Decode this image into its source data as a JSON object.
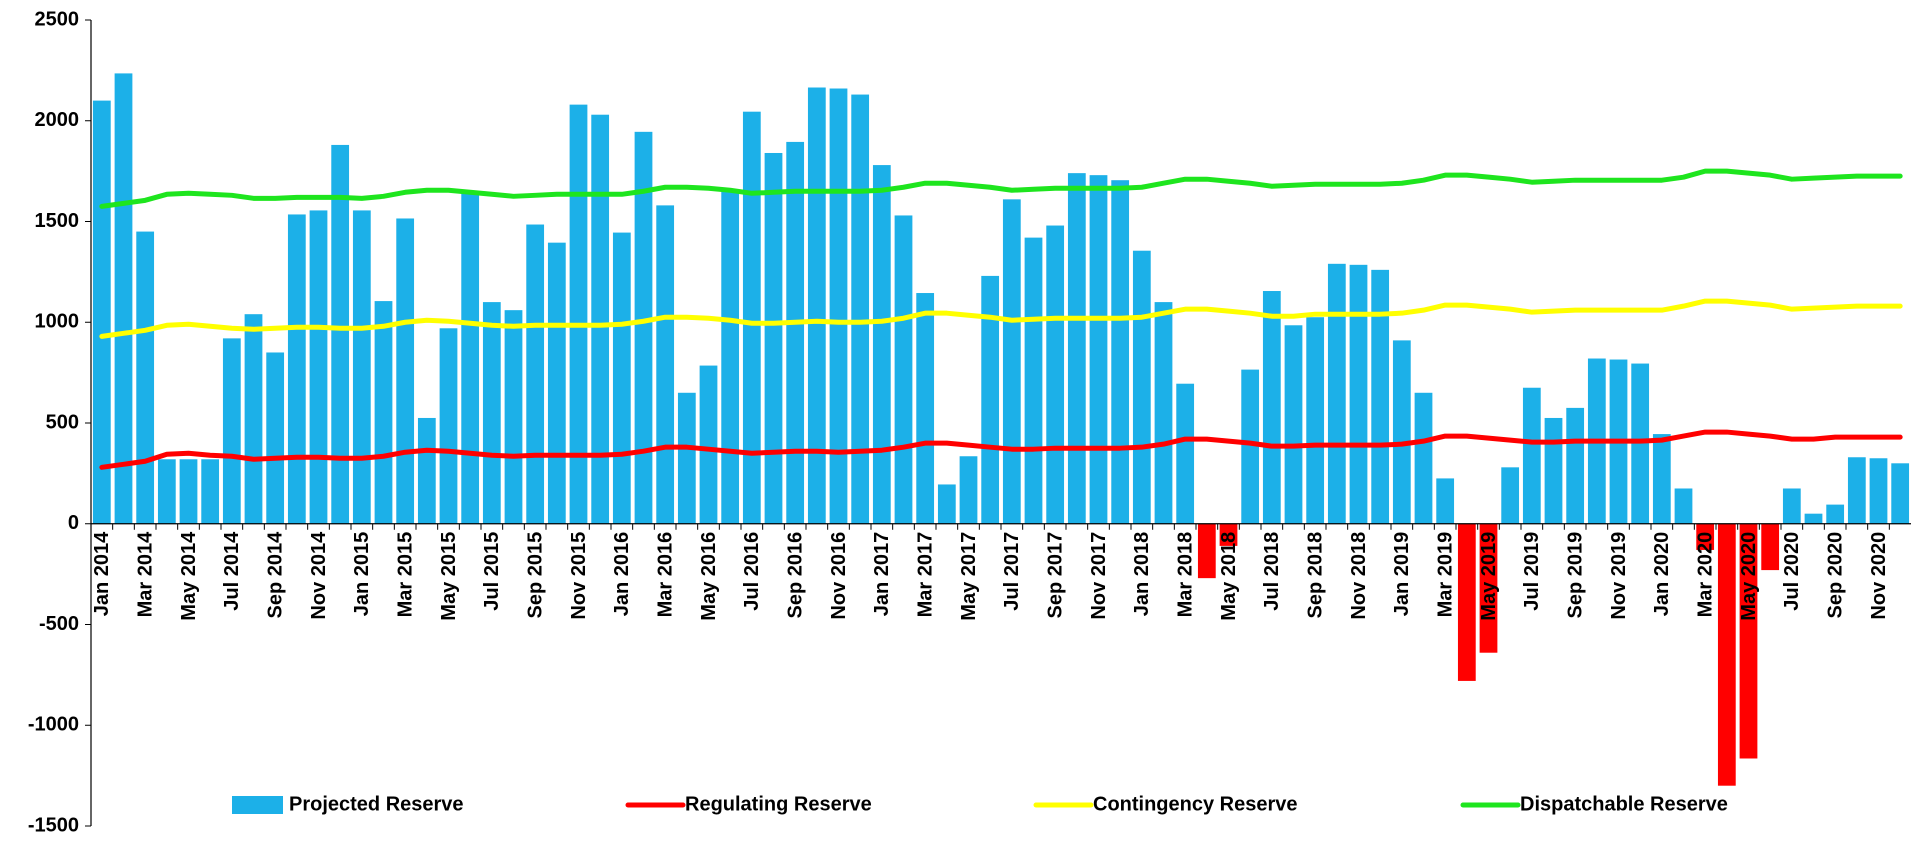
{
  "chart_data": {
    "type": "bar-line",
    "categories": [
      "Jan 2014",
      null,
      "Mar 2014",
      null,
      "May 2014",
      null,
      "Jul 2014",
      null,
      "Sep 2014",
      null,
      "Nov 2014",
      null,
      "Jan 2015",
      null,
      "Mar 2015",
      null,
      "May 2015",
      null,
      "Jul 2015",
      null,
      "Sep 2015",
      null,
      "Nov 2015",
      null,
      "Jan 2016",
      null,
      "Mar 2016",
      null,
      "May 2016",
      null,
      "Jul 2016",
      null,
      "Sep 2016",
      null,
      "Nov 2016",
      null,
      "Jan 2017",
      null,
      "Mar 2017",
      null,
      "May 2017",
      null,
      "Jul 2017",
      null,
      "Sep 2017",
      null,
      "Nov 2017",
      null,
      "Jan 2018",
      null,
      "Mar 2018",
      null,
      "May 2018",
      null,
      "Jul 2018",
      null,
      "Sep 2018",
      null,
      "Nov 2018",
      null,
      "Jan 2019",
      null,
      "Mar 2019",
      null,
      "May 2019",
      null,
      "Jul 2019",
      null,
      "Sep 2019",
      null,
      "Nov 2019",
      null,
      "Jan 2020",
      null,
      "Mar 2020",
      null,
      "May 2020",
      null,
      "Jul 2020",
      null,
      "Sep 2020",
      null,
      "Nov 2020",
      null
    ],
    "series": [
      {
        "name": "Projected Reserve",
        "kind": "bar",
        "color": "#1cb0e8",
        "negative_color": "#ff0000",
        "values": [
          2100,
          2235,
          1450,
          320,
          320,
          320,
          920,
          1040,
          850,
          1535,
          1555,
          1880,
          1555,
          1105,
          1515,
          525,
          970,
          1640,
          1100,
          1060,
          1485,
          1395,
          2080,
          2030,
          1445,
          1945,
          1580,
          650,
          785,
          1660,
          2045,
          1840,
          1895,
          2165,
          2160,
          2130,
          1780,
          1530,
          1145,
          195,
          335,
          1230,
          1610,
          1420,
          1480,
          1740,
          1730,
          1705,
          1355,
          1100,
          695,
          -270,
          -110,
          765,
          1155,
          985,
          1025,
          1290,
          1285,
          1260,
          910,
          650,
          225,
          -780,
          -640,
          280,
          675,
          525,
          575,
          820,
          815,
          795,
          445,
          175,
          -130,
          -1300,
          -1165,
          -230,
          175,
          50,
          95,
          330,
          325,
          300
        ]
      },
      {
        "name": "Regulating Reserve",
        "kind": "line",
        "color": "#ff0000",
        "values": [
          280,
          295,
          310,
          345,
          350,
          340,
          335,
          320,
          325,
          330,
          330,
          325,
          325,
          335,
          355,
          365,
          360,
          350,
          340,
          335,
          340,
          340,
          340,
          340,
          345,
          360,
          380,
          380,
          370,
          360,
          350,
          355,
          360,
          360,
          355,
          360,
          365,
          380,
          400,
          400,
          390,
          380,
          370,
          370,
          375,
          375,
          375,
          375,
          380,
          395,
          420,
          420,
          410,
          400,
          385,
          385,
          390,
          390,
          390,
          390,
          395,
          410,
          435,
          435,
          425,
          415,
          405,
          405,
          410,
          410,
          410,
          410,
          415,
          435,
          455,
          455,
          445,
          435,
          420,
          420,
          430,
          430,
          430,
          430
        ]
      },
      {
        "name": "Contingency Reserve",
        "kind": "line",
        "color": "#ffff00",
        "values": [
          930,
          945,
          960,
          985,
          990,
          980,
          970,
          965,
          970,
          975,
          975,
          970,
          970,
          980,
          1000,
          1010,
          1005,
          995,
          985,
          980,
          985,
          985,
          985,
          985,
          990,
          1005,
          1025,
          1025,
          1020,
          1010,
          995,
          995,
          1000,
          1005,
          1000,
          1000,
          1005,
          1020,
          1045,
          1045,
          1035,
          1025,
          1010,
          1015,
          1020,
          1020,
          1020,
          1020,
          1025,
          1045,
          1065,
          1065,
          1055,
          1045,
          1030,
          1030,
          1040,
          1040,
          1040,
          1040,
          1045,
          1060,
          1085,
          1085,
          1075,
          1065,
          1050,
          1055,
          1060,
          1060,
          1060,
          1060,
          1060,
          1080,
          1105,
          1105,
          1095,
          1085,
          1065,
          1070,
          1075,
          1080,
          1080,
          1080
        ]
      },
      {
        "name": "Dispatchable Reserve",
        "kind": "line",
        "color": "#1ee51e",
        "values": [
          1575,
          1590,
          1605,
          1635,
          1640,
          1635,
          1630,
          1615,
          1615,
          1620,
          1620,
          1620,
          1615,
          1625,
          1645,
          1655,
          1655,
          1645,
          1635,
          1625,
          1630,
          1635,
          1635,
          1635,
          1635,
          1650,
          1670,
          1670,
          1665,
          1655,
          1640,
          1645,
          1650,
          1650,
          1650,
          1650,
          1655,
          1670,
          1690,
          1690,
          1680,
          1670,
          1655,
          1660,
          1665,
          1665,
          1665,
          1665,
          1670,
          1690,
          1710,
          1710,
          1700,
          1690,
          1675,
          1680,
          1685,
          1685,
          1685,
          1685,
          1690,
          1705,
          1730,
          1730,
          1720,
          1710,
          1695,
          1700,
          1705,
          1705,
          1705,
          1705,
          1705,
          1720,
          1750,
          1750,
          1740,
          1730,
          1710,
          1715,
          1720,
          1725,
          1725,
          1725
        ]
      }
    ],
    "ylim": [
      -1500,
      2500
    ],
    "yticks": [
      -1500,
      -1000,
      -500,
      0,
      500,
      1000,
      1500,
      2000,
      2500
    ],
    "legend": "bottom"
  }
}
